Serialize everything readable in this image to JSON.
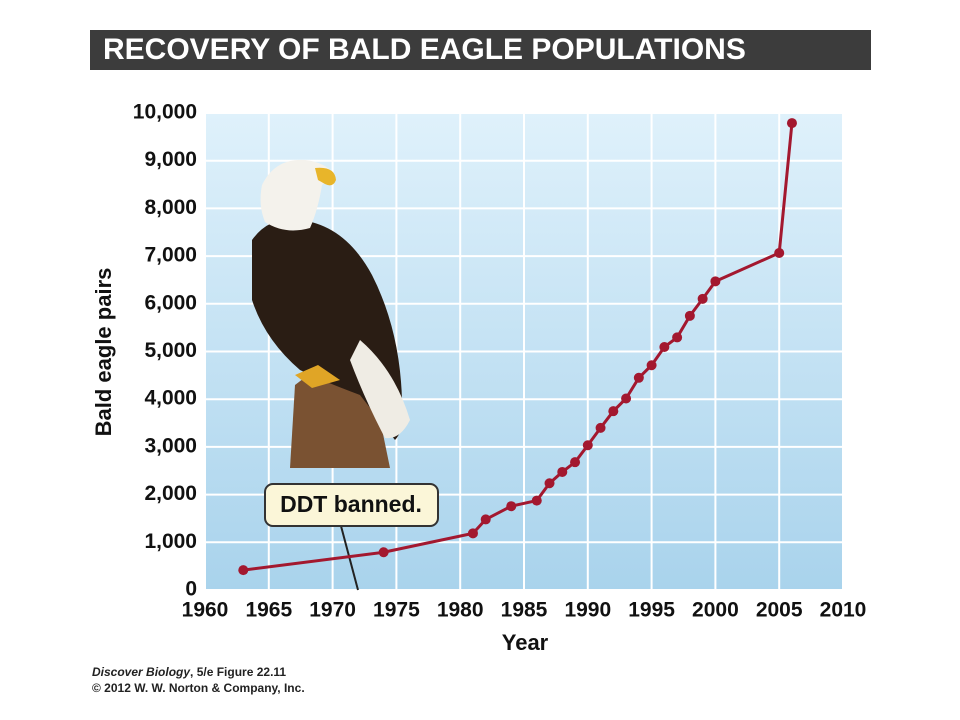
{
  "chart_data": {
    "type": "line",
    "title": "RECOVERY OF BALD EAGLE POPULATIONS",
    "x_label": "Year",
    "y_label": "Bald eagle pairs",
    "annotation": "DDT banned.",
    "source": {
      "book": "Discover Biology",
      "figure": ", 5/e Figure 22.11",
      "copyright": "© 2012 W. W. Norton & Company, Inc."
    },
    "x": [
      1963,
      1974,
      1981,
      1982,
      1984,
      1986,
      1987,
      1988,
      1989,
      1990,
      1991,
      1992,
      1993,
      1994,
      1995,
      1996,
      1997,
      1998,
      1999,
      2000,
      2005,
      2006
    ],
    "values": [
      417,
      791,
      1188,
      1480,
      1757,
      1875,
      2238,
      2475,
      2680,
      3035,
      3399,
      3749,
      4015,
      4449,
      4712,
      5094,
      5295,
      5748,
      6104,
      6471,
      7066,
      9789
    ],
    "color": "#a3182f",
    "xlim": [
      1960,
      2010
    ],
    "xticks": [
      1960,
      1965,
      1970,
      1975,
      1980,
      1985,
      1990,
      1995,
      2000,
      2005,
      2010
    ],
    "ylim": [
      0,
      10000
    ],
    "yticks": [
      0,
      {
        "value": 1000,
        "label": "1,000"
      },
      {
        "value": 2000,
        "label": "2,000"
      },
      {
        "value": 3000,
        "label": "3,000"
      },
      {
        "value": 4000,
        "label": "4,000"
      },
      {
        "value": 5000,
        "label": "5,000"
      },
      {
        "value": 6000,
        "label": "6,000"
      },
      {
        "value": 7000,
        "label": "7,000"
      },
      {
        "value": 8000,
        "label": "8,000"
      },
      {
        "value": 9000,
        "label": "9,000"
      },
      {
        "value": 10000,
        "label": "10,000"
      }
    ],
    "grid": true
  }
}
